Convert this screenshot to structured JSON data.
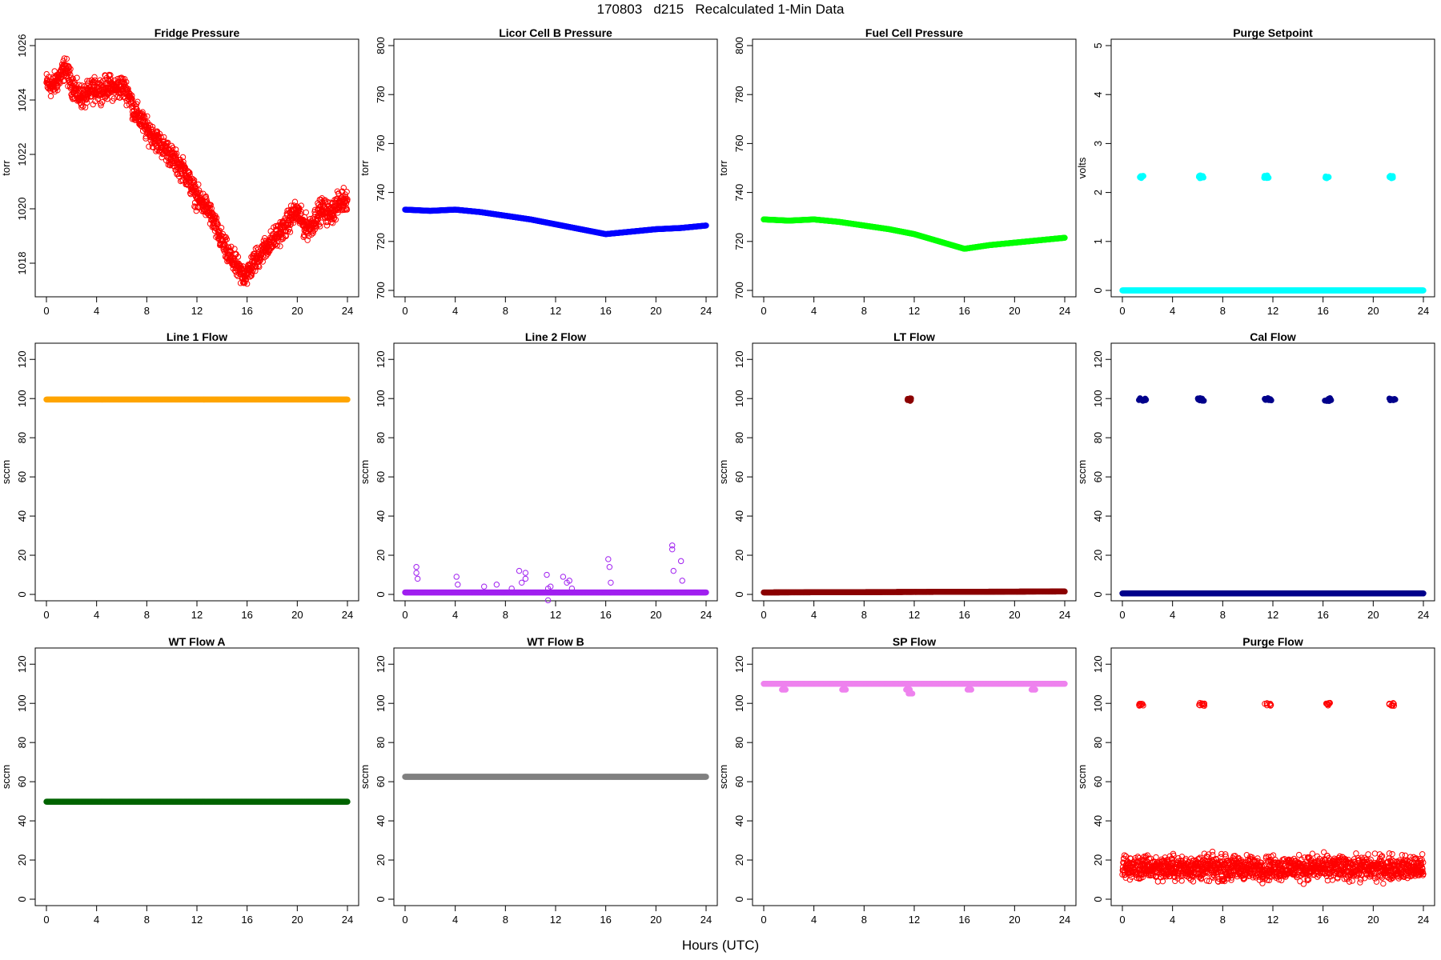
{
  "page": {
    "title": "170803   d215   Recalculated 1-Min Data",
    "xlabel": "Hours (UTC)"
  },
  "chart_data": [
    {
      "type": "scatter",
      "title": "Fridge Pressure",
      "ylabel": "torr",
      "color": "#ff0000",
      "marker": "open",
      "xlim": [
        0,
        24
      ],
      "ylim": [
        1017,
        1026
      ],
      "yticks": [
        1018,
        1020,
        1022,
        1024,
        1026
      ],
      "xticks": [
        0,
        4,
        8,
        12,
        16,
        20,
        24
      ],
      "series": {
        "x": [
          0,
          0.5,
          1,
          1.5,
          2,
          2.5,
          3,
          3.5,
          4,
          4.5,
          5,
          5.5,
          6,
          6.5,
          7,
          7.5,
          8,
          8.5,
          9,
          9.5,
          10,
          10.5,
          11,
          11.5,
          12,
          12.5,
          13,
          13.5,
          14,
          14.5,
          15,
          15.5,
          16,
          16.5,
          17,
          17.5,
          18,
          18.5,
          19,
          19.5,
          20,
          20.5,
          21,
          21.5,
          22,
          22.5,
          23,
          23.5,
          24
        ],
        "y": [
          1024.6,
          1024.5,
          1024.8,
          1025.2,
          1024.6,
          1024.2,
          1024.1,
          1024.3,
          1024.4,
          1024.4,
          1024.5,
          1024.4,
          1024.5,
          1024.3,
          1023.6,
          1023.3,
          1022.9,
          1022.7,
          1022.4,
          1022.2,
          1021.9,
          1021.6,
          1021.4,
          1020.9,
          1020.4,
          1020.2,
          1019.9,
          1019.3,
          1018.8,
          1018.3,
          1018.0,
          1017.6,
          1017.6,
          1018.0,
          1018.3,
          1018.6,
          1018.8,
          1019.1,
          1019.3,
          1019.7,
          1019.9,
          1019.4,
          1019.3,
          1019.7,
          1020.0,
          1019.8,
          1020.0,
          1020.3,
          1020.4
        ],
        "spread": 0.35
      }
    },
    {
      "type": "scatter",
      "title": "Licor Cell B Pressure",
      "ylabel": "torr",
      "color": "#0000ff",
      "marker": "filled",
      "xlim": [
        0,
        24
      ],
      "ylim": [
        700,
        800
      ],
      "yticks": [
        700,
        720,
        740,
        760,
        780,
        800
      ],
      "xticks": [
        0,
        4,
        8,
        12,
        16,
        20,
        24
      ],
      "series": {
        "x": [
          0,
          2,
          4,
          6,
          8,
          10,
          12,
          14,
          16,
          18,
          20,
          22,
          24
        ],
        "y": [
          733,
          732.5,
          733,
          732,
          730.5,
          729,
          727,
          725,
          723,
          724,
          725,
          725.5,
          726.5
        ],
        "spread": 0
      }
    },
    {
      "type": "scatter",
      "title": "Fuel Cell Pressure",
      "ylabel": "torr",
      "color": "#00ff00",
      "marker": "filled",
      "xlim": [
        0,
        24
      ],
      "ylim": [
        700,
        800
      ],
      "yticks": [
        700,
        720,
        740,
        760,
        780,
        800
      ],
      "xticks": [
        0,
        4,
        8,
        12,
        16,
        20,
        24
      ],
      "series": {
        "x": [
          0,
          2,
          4,
          6,
          8,
          10,
          12,
          14,
          16,
          18,
          20,
          22,
          24
        ],
        "y": [
          729,
          728.5,
          729,
          728,
          726.5,
          725,
          723,
          720,
          717,
          718.5,
          719.5,
          720.5,
          721.5
        ],
        "spread": 0
      }
    },
    {
      "type": "scatter",
      "title": "Purge Setpoint",
      "ylabel": "volts",
      "color": "#00ffff",
      "marker": "filled",
      "xlim": [
        0,
        24
      ],
      "ylim": [
        0,
        5
      ],
      "yticks": [
        0,
        1,
        2,
        3,
        4,
        5
      ],
      "xticks": [
        0,
        4,
        8,
        12,
        16,
        20,
        24
      ],
      "series": {
        "x": [
          0,
          24
        ],
        "y": [
          0,
          0
        ],
        "spread": 0
      },
      "events": {
        "x": [
          1.5,
          6.3,
          11.5,
          16.3,
          21.4
        ],
        "y": 2.32,
        "width": 0.4
      }
    },
    {
      "type": "scatter",
      "title": "Line 1 Flow",
      "ylabel": "sccm",
      "color": "#ffa500",
      "marker": "filled",
      "xlim": [
        0,
        24
      ],
      "ylim": [
        0,
        125
      ],
      "yticks": [
        0,
        20,
        40,
        60,
        80,
        100,
        120
      ],
      "xticks": [
        0,
        4,
        8,
        12,
        16,
        20,
        24
      ],
      "series": {
        "x": [
          0,
          24
        ],
        "y": [
          99.5,
          99.5
        ],
        "spread": 0
      }
    },
    {
      "type": "scatter",
      "title": "Line 2 Flow",
      "ylabel": "sccm",
      "color": "#a020f0",
      "marker": "filled",
      "xlim": [
        0,
        24
      ],
      "ylim": [
        0,
        125
      ],
      "yticks": [
        0,
        20,
        40,
        60,
        80,
        100,
        120
      ],
      "xticks": [
        0,
        4,
        8,
        12,
        16,
        20,
        24
      ],
      "series": {
        "x": [
          0,
          24
        ],
        "y": [
          1,
          1
        ],
        "spread": 0
      },
      "outliers": {
        "x": [
          0.9,
          0.9,
          1.0,
          4.1,
          4.2,
          6.3,
          7.3,
          8.5,
          9.1,
          9.3,
          9.6,
          9.6,
          11.3,
          11.6,
          11.4,
          12.6,
          12.9,
          13.1,
          13.3,
          16.2,
          16.3,
          16.4,
          21.3,
          21.3,
          21.4,
          22.0,
          22.1,
          11.4
        ],
        "y": [
          14,
          11,
          8,
          9,
          5,
          4,
          5,
          3,
          12,
          6,
          11,
          8,
          10,
          4,
          -3,
          9,
          6,
          7,
          3,
          18,
          14,
          6,
          25,
          23,
          12,
          17,
          7,
          3
        ]
      }
    },
    {
      "type": "scatter",
      "title": "LT Flow",
      "ylabel": "sccm",
      "color": "#8b0000",
      "marker": "filled",
      "xlim": [
        0,
        24
      ],
      "ylim": [
        0,
        125
      ],
      "yticks": [
        0,
        20,
        40,
        60,
        80,
        100,
        120
      ],
      "xticks": [
        0,
        4,
        8,
        12,
        16,
        20,
        24
      ],
      "series": {
        "x": [
          0,
          24
        ],
        "y": [
          1,
          1.5
        ],
        "spread": 0
      },
      "events": {
        "x": [
          11.6
        ],
        "y": 99.5,
        "width": 0.3
      }
    },
    {
      "type": "scatter",
      "title": "Cal Flow",
      "ylabel": "sccm",
      "color": "#00008b",
      "marker": "filled",
      "xlim": [
        0,
        24
      ],
      "ylim": [
        0,
        125
      ],
      "yticks": [
        0,
        20,
        40,
        60,
        80,
        100,
        120
      ],
      "xticks": [
        0,
        4,
        8,
        12,
        16,
        20,
        24
      ],
      "series": {
        "x": [
          0,
          24
        ],
        "y": [
          0.5,
          0.5
        ],
        "spread": 0
      },
      "events": {
        "x": [
          1.6,
          6.3,
          11.6,
          16.4,
          21.5
        ],
        "y": 99.5,
        "width": 0.6
      }
    },
    {
      "type": "scatter",
      "title": "WT Flow A",
      "ylabel": "sccm",
      "color": "#006400",
      "marker": "filled",
      "xlim": [
        0,
        24
      ],
      "ylim": [
        0,
        125
      ],
      "yticks": [
        0,
        20,
        40,
        60,
        80,
        100,
        120
      ],
      "xticks": [
        0,
        4,
        8,
        12,
        16,
        20,
        24
      ],
      "series": {
        "x": [
          0,
          24
        ],
        "y": [
          49.8,
          49.8
        ],
        "spread": 0
      }
    },
    {
      "type": "scatter",
      "title": "WT Flow B",
      "ylabel": "sccm",
      "color": "#808080",
      "marker": "filled",
      "xlim": [
        0,
        24
      ],
      "ylim": [
        0,
        125
      ],
      "yticks": [
        0,
        20,
        40,
        60,
        80,
        100,
        120
      ],
      "xticks": [
        0,
        4,
        8,
        12,
        16,
        20,
        24
      ],
      "series": {
        "x": [
          0,
          24
        ],
        "y": [
          62.5,
          62.5
        ],
        "spread": 0
      }
    },
    {
      "type": "scatter",
      "title": "SP Flow",
      "ylabel": "sccm",
      "color": "#ee82ee",
      "marker": "filled",
      "xlim": [
        0,
        24
      ],
      "ylim": [
        0,
        125
      ],
      "yticks": [
        0,
        20,
        40,
        60,
        80,
        100,
        120
      ],
      "xticks": [
        0,
        4,
        8,
        12,
        16,
        20,
        24
      ],
      "series": {
        "x": [
          0,
          24
        ],
        "y": [
          110,
          110
        ],
        "spread": 0
      },
      "dips": {
        "x": [
          1.6,
          6.4,
          11.5,
          11.7,
          16.4,
          21.5
        ],
        "y": [
          107,
          107,
          107,
          105,
          107,
          107
        ]
      }
    },
    {
      "type": "scatter",
      "title": "Purge Flow",
      "ylabel": "sccm",
      "color": "#ff0000",
      "marker": "open",
      "xlim": [
        0,
        24
      ],
      "ylim": [
        0,
        125
      ],
      "yticks": [
        0,
        20,
        40,
        60,
        80,
        100,
        120
      ],
      "xticks": [
        0,
        4,
        8,
        12,
        16,
        20,
        24
      ],
      "series": {
        "x": [
          0,
          24
        ],
        "y": [
          16,
          16
        ],
        "spread": 5
      },
      "events": {
        "x": [
          1.5,
          6.3,
          11.6,
          16.4,
          21.5
        ],
        "y": 99.5,
        "width": 0.5
      }
    }
  ]
}
